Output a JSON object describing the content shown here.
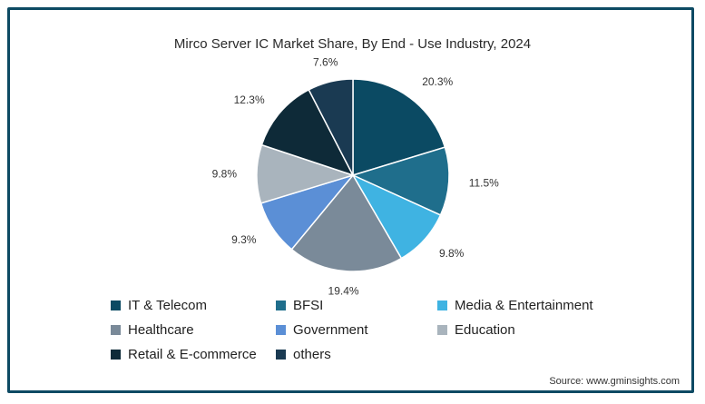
{
  "chart_data": {
    "type": "pie",
    "title": "Mirco Server IC Market Share, By End - Use Industry, 2024",
    "slices": [
      {
        "label": "IT & Telecom",
        "value": 20.3,
        "value_label": "20.3%",
        "color": "#0b4a63"
      },
      {
        "label": "BFSI",
        "value": 11.5,
        "value_label": "11.5%",
        "color": "#1f6e8c"
      },
      {
        "label": "Media & Entertainment",
        "value": 9.8,
        "value_label": "9.8%",
        "color": "#3fb3e2"
      },
      {
        "label": "Healthcare",
        "value": 19.4,
        "value_label": "19.4%",
        "color": "#7a8a99"
      },
      {
        "label": "Government",
        "value": 9.3,
        "value_label": "9.3%",
        "color": "#5b8fd6"
      },
      {
        "label": "Education",
        "value": 9.8,
        "value_label": "9.8%",
        "color": "#a9b4bd"
      },
      {
        "label": "Retail & E-commerce",
        "value": 12.3,
        "value_label": "12.3%",
        "color": "#0e2a38"
      },
      {
        "label": "others",
        "value": 7.6,
        "value_label": "7.6%",
        "color": "#1a3a52"
      }
    ],
    "legend_position": "bottom"
  },
  "source": "Source: www.gminsights.com"
}
